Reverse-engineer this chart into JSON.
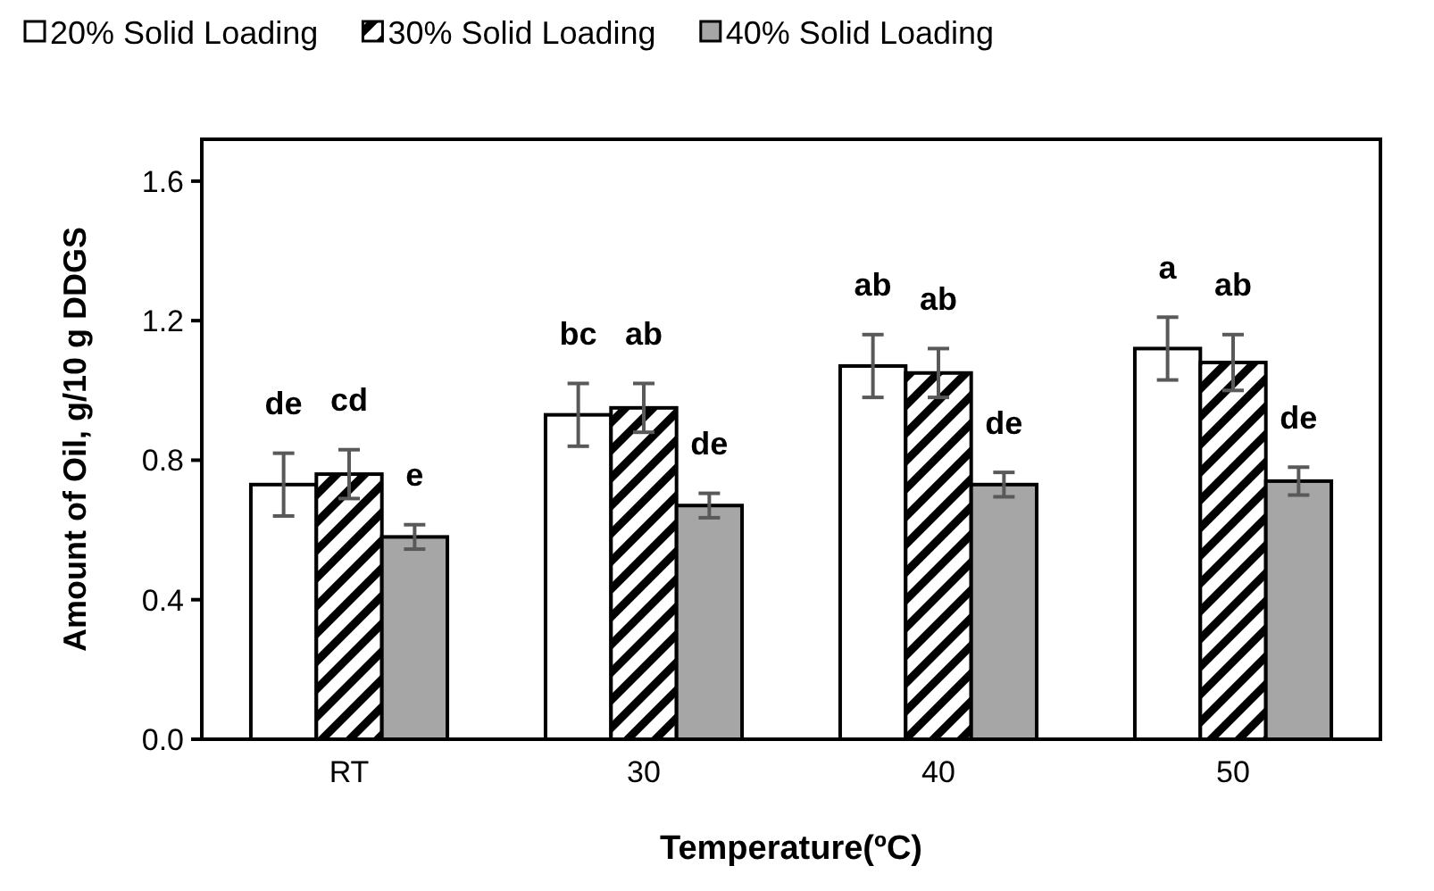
{
  "chart_data": {
    "type": "bar",
    "xlabel": "Temperature(ºC)",
    "ylabel": "Amount of Oil, g/10 g DDGS",
    "categories": [
      "RT",
      "30",
      "40",
      "50"
    ],
    "series": [
      {
        "name": "20% Solid Loading",
        "color": "#ffffff",
        "values": [
          0.73,
          0.93,
          1.07,
          1.12
        ],
        "errors": [
          0.09,
          0.09,
          0.09,
          0.09
        ]
      },
      {
        "name": "30% Solid Loading",
        "color": "#000000",
        "values": [
          0.76,
          0.95,
          1.05,
          1.08
        ],
        "errors": [
          0.07,
          0.07,
          0.07,
          0.08
        ]
      },
      {
        "name": "40% Solid Loading",
        "color": "#a6a6a6",
        "values": [
          0.58,
          0.67,
          0.73,
          0.74
        ],
        "errors": [
          0.035,
          0.035,
          0.035,
          0.04
        ]
      }
    ],
    "ylim": [
      0,
      1.72
    ],
    "yticks": [
      {
        "value": 0,
        "label": "0.0"
      },
      {
        "value": 0.4,
        "label": "0.4"
      },
      {
        "value": 0.8,
        "label": "0.8"
      },
      {
        "value": 1.2,
        "label": "1.2"
      },
      {
        "value": 1.6,
        "label": "1.6"
      }
    ],
    "grid": false,
    "legend": "top",
    "annotations": [
      "de",
      "cd",
      "e",
      "bc",
      "ab",
      "de",
      "ab",
      "ab",
      "de",
      "a",
      "ab",
      "de"
    ]
  }
}
